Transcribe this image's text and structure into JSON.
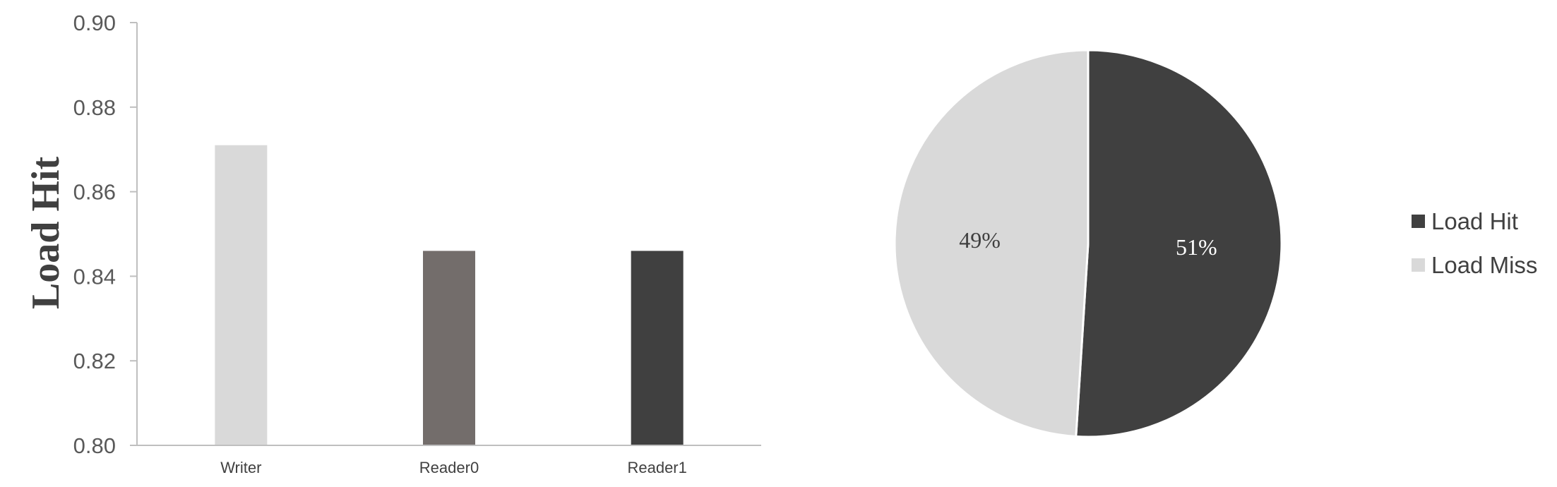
{
  "chart_data": [
    {
      "type": "bar",
      "title": "",
      "xlabel": "",
      "ylabel": "Load Hit",
      "ylim": [
        0.8,
        0.9
      ],
      "yticks": [
        "0.80",
        "0.82",
        "0.84",
        "0.86",
        "0.88",
        "0.90"
      ],
      "categories": [
        "Writer",
        "Reader0",
        "Reader1"
      ],
      "values": [
        0.871,
        0.846,
        0.846
      ],
      "colors": [
        "#d9d9d9",
        "#736d6b",
        "#404040"
      ],
      "grid": false,
      "legend": "none"
    },
    {
      "type": "pie",
      "title": "",
      "slices": [
        {
          "name": "Load Hit",
          "value": 51,
          "label": "51%",
          "color": "#404040",
          "label_color": "#ffffff"
        },
        {
          "name": "Load Miss",
          "value": 49,
          "label": "49%",
          "color": "#d9d9d9",
          "label_color": "#404040"
        }
      ],
      "legend": "right"
    }
  ]
}
